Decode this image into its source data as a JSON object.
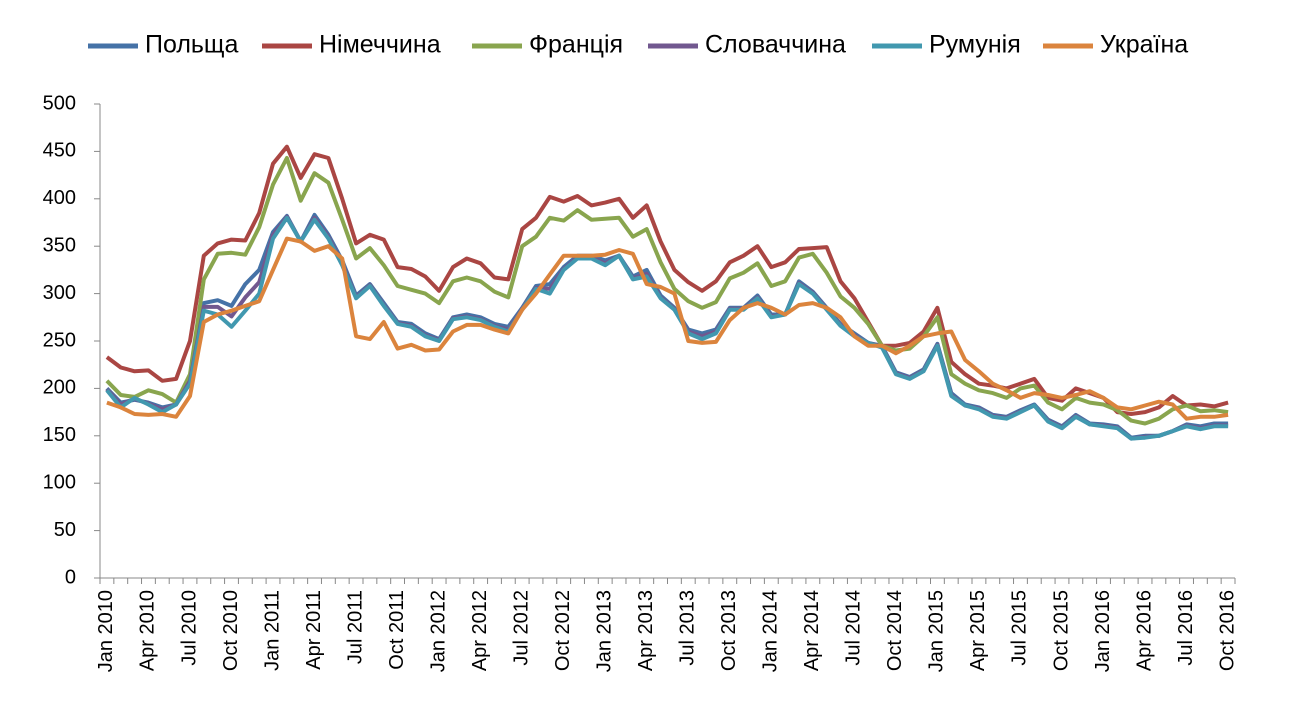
{
  "chart_data": {
    "type": "line",
    "categories": [
      "Jan 2010",
      null,
      null,
      "Apr 2010",
      null,
      null,
      "Jul 2010",
      null,
      null,
      "Oct 2010",
      null,
      null,
      "Jan 2011",
      null,
      null,
      "Apr 2011",
      null,
      null,
      "Jul 2011",
      null,
      null,
      "Oct 2011",
      null,
      null,
      "Jan 2012",
      null,
      null,
      "Apr 2012",
      null,
      null,
      "Jul 2012",
      null,
      null,
      "Oct 2012",
      null,
      null,
      "Jan 2013",
      null,
      null,
      "Apr 2013",
      null,
      null,
      "Jul 2013",
      null,
      null,
      "Oct 2013",
      null,
      null,
      "Jan 2014",
      null,
      null,
      "Apr 2014",
      null,
      null,
      "Jul 2014",
      null,
      null,
      "Oct 2014",
      null,
      null,
      "Jan 2015",
      null,
      null,
      "Apr 2015",
      null,
      null,
      "Jul 2015",
      null,
      null,
      "Oct 2015",
      null,
      null,
      "Jan 2016",
      null,
      null,
      "Apr 2016",
      null,
      null,
      "Jul 2016",
      null,
      null,
      "Oct 2016"
    ],
    "series": [
      {
        "name": "Польща",
        "color": "#4572a7",
        "values": [
          200,
          185,
          188,
          185,
          180,
          183,
          210,
          290,
          293,
          287,
          310,
          325,
          365,
          382,
          355,
          383,
          362,
          335,
          298,
          310,
          290,
          270,
          268,
          258,
          252,
          275,
          278,
          275,
          268,
          265,
          285,
          308,
          310,
          328,
          340,
          340,
          335,
          340,
          318,
          325,
          298,
          285,
          262,
          258,
          262,
          285,
          285,
          298,
          278,
          278,
          313,
          302,
          285,
          268,
          258,
          248,
          245,
          217,
          212,
          220,
          247,
          195,
          183,
          180,
          172,
          170,
          177,
          183,
          167,
          160,
          172,
          163,
          162,
          160,
          148,
          150,
          150,
          155,
          162,
          160,
          163,
          163
        ]
      },
      {
        "name": "Німеччина",
        "color": "#aa4643",
        "values": [
          233,
          222,
          218,
          219,
          208,
          210,
          250,
          340,
          353,
          357,
          356,
          385,
          437,
          455,
          422,
          447,
          443,
          400,
          353,
          362,
          357,
          328,
          326,
          318,
          303,
          328,
          337,
          332,
          317,
          315,
          368,
          380,
          402,
          397,
          403,
          393,
          396,
          400,
          380,
          393,
          355,
          325,
          312,
          303,
          313,
          333,
          340,
          350,
          328,
          333,
          347,
          348,
          349,
          313,
          295,
          270,
          245,
          245,
          248,
          260,
          285,
          228,
          215,
          205,
          203,
          200,
          205,
          210,
          190,
          187,
          200,
          195,
          190,
          175,
          173,
          175,
          180,
          192,
          182,
          183,
          181,
          185
        ]
      },
      {
        "name": "Франція",
        "color": "#89a54e",
        "values": [
          208,
          193,
          191,
          198,
          194,
          185,
          215,
          315,
          342,
          343,
          341,
          370,
          415,
          443,
          398,
          427,
          417,
          378,
          337,
          348,
          330,
          308,
          304,
          300,
          290,
          313,
          317,
          313,
          302,
          296,
          350,
          360,
          380,
          377,
          388,
          378,
          379,
          380,
          360,
          368,
          333,
          305,
          292,
          285,
          291,
          316,
          322,
          332,
          308,
          313,
          338,
          342,
          322,
          297,
          285,
          268,
          245,
          240,
          242,
          255,
          275,
          215,
          205,
          198,
          195,
          190,
          200,
          203,
          185,
          178,
          190,
          185,
          183,
          177,
          166,
          163,
          168,
          178,
          182,
          176,
          177,
          175
        ]
      },
      {
        "name": "Словаччина",
        "color": "#71588f",
        "values": [
          199,
          183,
          189,
          184,
          178,
          183,
          208,
          286,
          286,
          276,
          296,
          312,
          362,
          381,
          355,
          380,
          360,
          332,
          296,
          309,
          288,
          269,
          266,
          256,
          251,
          274,
          276,
          273,
          266,
          262,
          284,
          306,
          305,
          326,
          338,
          338,
          332,
          340,
          316,
          321,
          296,
          284,
          260,
          255,
          260,
          284,
          284,
          296,
          276,
          278,
          311,
          301,
          284,
          267,
          256,
          248,
          244,
          216,
          211,
          219,
          246,
          193,
          182,
          179,
          171,
          169,
          176,
          182,
          166,
          159,
          171,
          162,
          161,
          159,
          147,
          149,
          150,
          155,
          161,
          158,
          161,
          161
        ]
      },
      {
        "name": "Румунія",
        "color": "#4198af",
        "values": [
          198,
          180,
          190,
          183,
          175,
          183,
          205,
          282,
          278,
          265,
          282,
          300,
          358,
          380,
          355,
          378,
          358,
          330,
          295,
          308,
          287,
          268,
          265,
          255,
          250,
          273,
          275,
          272,
          265,
          260,
          283,
          305,
          300,
          325,
          337,
          337,
          330,
          340,
          315,
          318,
          295,
          283,
          258,
          252,
          258,
          283,
          283,
          295,
          275,
          278,
          310,
          300,
          283,
          266,
          255,
          248,
          243,
          215,
          210,
          218,
          245,
          192,
          182,
          178,
          170,
          168,
          175,
          182,
          165,
          158,
          170,
          162,
          160,
          158,
          147,
          148,
          150,
          155,
          160,
          157,
          160,
          160
        ]
      },
      {
        "name": "Україна",
        "color": "#db843d",
        "values": [
          185,
          180,
          173,
          172,
          173,
          170,
          192,
          270,
          278,
          282,
          287,
          292,
          325,
          358,
          355,
          345,
          350,
          337,
          255,
          252,
          270,
          242,
          246,
          240,
          241,
          260,
          267,
          267,
          262,
          258,
          283,
          300,
          320,
          340,
          340,
          340,
          341,
          346,
          342,
          310,
          307,
          300,
          250,
          248,
          249,
          272,
          285,
          290,
          285,
          278,
          288,
          290,
          285,
          275,
          255,
          245,
          245,
          237,
          245,
          255,
          258,
          260,
          230,
          218,
          205,
          198,
          190,
          195,
          193,
          190,
          193,
          197,
          190,
          180,
          178,
          182,
          186,
          183,
          168,
          170,
          170,
          172
        ]
      }
    ],
    "ylim": [
      0,
      500
    ],
    "yticks": [
      0,
      50,
      100,
      150,
      200,
      250,
      300,
      350,
      400,
      450,
      500
    ]
  }
}
